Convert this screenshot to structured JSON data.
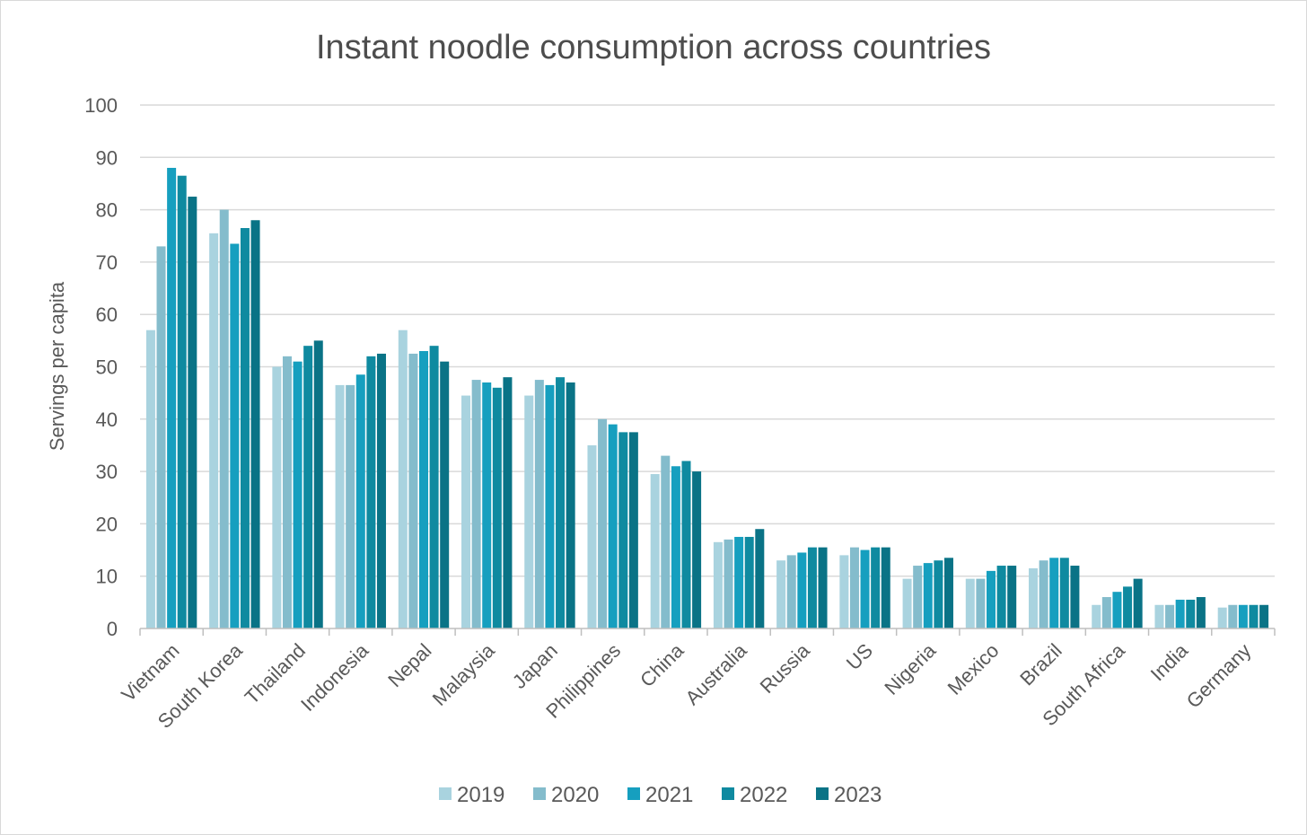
{
  "colors": {
    "2019": "#a9d3df",
    "2020": "#84bccc",
    "2021": "#169fbf",
    "2022": "#0f8aa0",
    "2023": "#0a7386",
    "gridline": "#d9d9d9",
    "axis": "#bfbfbf",
    "text": "#595959"
  },
  "chart_data": {
    "type": "bar",
    "title": "Instant noodle consumption across countries",
    "xlabel": "",
    "ylabel": "Servings per capita",
    "ylim": [
      0,
      100
    ],
    "yticks": [
      0,
      10,
      20,
      30,
      40,
      50,
      60,
      70,
      80,
      90,
      100
    ],
    "grid": true,
    "legend_position": "bottom",
    "categories": [
      "Vietnam",
      "South Korea",
      "Thailand",
      "Indonesia",
      "Nepal",
      "Malaysia",
      "Japan",
      "Philippines",
      "China",
      "Australia",
      "Russia",
      "US",
      "Nigeria",
      "Mexico",
      "Brazil",
      "South Africa",
      "India",
      "Germany"
    ],
    "series": [
      {
        "name": "2019",
        "values": [
          57,
          75.5,
          50,
          46.5,
          57,
          44.5,
          44.5,
          35,
          29.5,
          16.5,
          13,
          14,
          9.5,
          9.5,
          11.5,
          4.5,
          4.5,
          4
        ]
      },
      {
        "name": "2020",
        "values": [
          73,
          80,
          52,
          46.5,
          52.5,
          47.5,
          47.5,
          40,
          33,
          17,
          14,
          15.5,
          12,
          9.5,
          13,
          6,
          4.5,
          4.5
        ]
      },
      {
        "name": "2021",
        "values": [
          88,
          73.5,
          51,
          48.5,
          53,
          47,
          46.5,
          39,
          31,
          17.5,
          14.5,
          15,
          12.5,
          11,
          13.5,
          7,
          5.5,
          4.5
        ]
      },
      {
        "name": "2022",
        "values": [
          86.5,
          76.5,
          54,
          52,
          54,
          46,
          48,
          37.5,
          32,
          17.5,
          15.5,
          15.5,
          13,
          12,
          13.5,
          8,
          5.5,
          4.5
        ]
      },
      {
        "name": "2023",
        "values": [
          82.5,
          78,
          55,
          52.5,
          51,
          48,
          47,
          37.5,
          30,
          19,
          15.5,
          15.5,
          13.5,
          12,
          12,
          9.5,
          6,
          4.5
        ]
      }
    ]
  }
}
